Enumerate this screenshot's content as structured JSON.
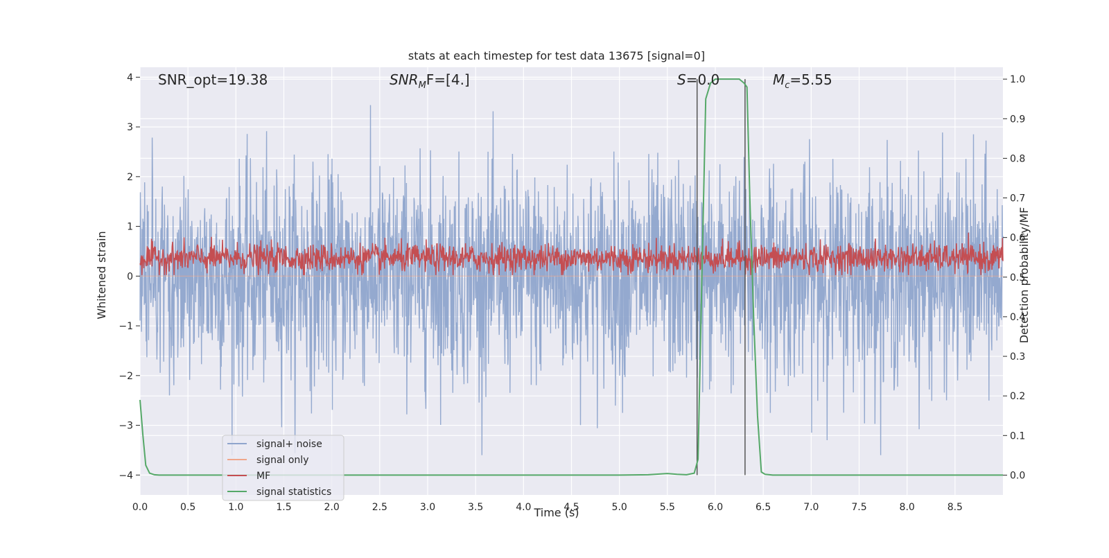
{
  "chart_data": {
    "type": "line",
    "title": "stats at each timestep for test data 13675 [signal=0]",
    "xlabel": "Time (s)",
    "ylabel": "Whitened strain",
    "ylabel_right": "Detection probability/MF",
    "xlim": [
      0.0,
      9.0
    ],
    "ylim_left": [
      -4.4,
      4.2
    ],
    "ylim_right": [
      -0.05,
      1.03
    ],
    "xticks": [
      "0.0",
      "0.5",
      "1.0",
      "1.5",
      "2.0",
      "2.5",
      "3.0",
      "3.5",
      "4.0",
      "4.5",
      "5.0",
      "5.5",
      "6.0",
      "6.5",
      "7.0",
      "7.5",
      "8.0",
      "8.5"
    ],
    "yticks_left": [
      "4",
      "3",
      "2",
      "1",
      "0",
      "−1",
      "−2",
      "−3",
      "−4"
    ],
    "yticks_right": [
      "1.0",
      "0.9",
      "0.8",
      "0.7",
      "0.6",
      "0.5",
      "0.4",
      "0.3",
      "0.2",
      "0.1",
      "0.0"
    ],
    "grid": true,
    "legend_position": "lower-left",
    "annotations": {
      "snr_opt": "SNR_opt=19.38",
      "snr_mf_main": "SNR",
      "snr_mf_sub": "M",
      "snr_mf_rest": "F=[4.]",
      "s_main": "S",
      "s_rest": "=0.0",
      "mc_main": "M",
      "mc_sub": "c",
      "mc_rest": "=5.55"
    },
    "vertical_lines_x": [
      5.81,
      6.31
    ],
    "series": [
      {
        "name": "signal+ noise",
        "color": "#8fa5cc",
        "axis": "left",
        "description": "noise band",
        "approx_range": [
          -3.6,
          3.8
        ]
      },
      {
        "name": "signal only",
        "color": "#f0a68a",
        "axis": "left",
        "x": [
          0.0,
          9.0
        ],
        "y": [
          0.0,
          0.0
        ]
      },
      {
        "name": "MF",
        "color": "#c44e52",
        "axis": "right",
        "approx_range": [
          0.5,
          0.63
        ]
      },
      {
        "name": "signal statistics",
        "color": "#55a868",
        "axis": "right",
        "x": [
          0.0,
          0.03,
          0.06,
          0.1,
          0.15,
          0.2,
          0.5,
          1.0,
          2.0,
          3.0,
          4.0,
          5.0,
          5.3,
          5.5,
          5.6,
          5.7,
          5.78,
          5.82,
          5.86,
          5.9,
          5.95,
          6.0,
          6.1,
          6.2,
          6.25,
          6.3,
          6.33,
          6.36,
          6.4,
          6.44,
          6.48,
          6.52,
          6.6,
          7.0,
          8.0,
          9.0
        ],
        "y": [
          0.19,
          0.1,
          0.025,
          0.005,
          0.001,
          0.0,
          0.0,
          0.0,
          0.0,
          0.0,
          0.0,
          0.0,
          0.001,
          0.004,
          0.002,
          0.001,
          0.005,
          0.04,
          0.5,
          0.95,
          0.99,
          1.0,
          1.0,
          1.0,
          1.0,
          0.99,
          0.98,
          0.7,
          0.4,
          0.15,
          0.008,
          0.002,
          0.0,
          0.0,
          0.0,
          0.0
        ]
      }
    ]
  },
  "colors": {
    "background": "#eaeaf2",
    "grid": "#ffffff",
    "vline": "#555555"
  }
}
